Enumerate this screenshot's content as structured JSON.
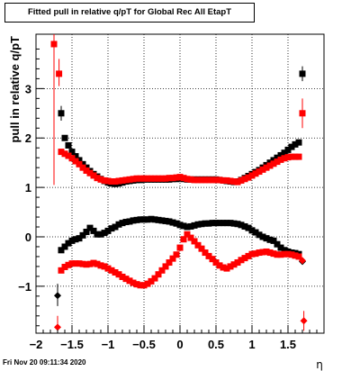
{
  "footer_date": "Fri Nov 20 09:11:34 2020",
  "chart_data": {
    "type": "scatter",
    "title": "Fitted pull in relative q/pT for Global Rec All EtapT",
    "xlabel": "η",
    "ylabel": "pull in relative q/pT",
    "xlim": [
      -2.0,
      2.0
    ],
    "ylim": [
      -1.95,
      4.1
    ],
    "xticks": [
      -2,
      -1.5,
      -1,
      -0.5,
      0,
      0.5,
      1,
      1.5
    ],
    "xtick_labels": [
      "−2",
      "−1.5",
      "−1",
      "−0.5",
      "0",
      "0.5",
      "1",
      "1.5"
    ],
    "yticks": [
      -1,
      0,
      1,
      2,
      3
    ],
    "ytick_labels": [
      "−1",
      "0",
      "1",
      "2",
      "3"
    ],
    "grid": true,
    "legend": "none",
    "colors": {
      "black": "#000000",
      "red": "#ff0000"
    },
    "series": [
      {
        "color": "#000000",
        "marker": "square",
        "points": [
          [
            -1.65,
            2.5
          ],
          [
            -1.6,
            2.0
          ],
          [
            -1.55,
            1.85
          ],
          [
            -1.5,
            1.72
          ],
          [
            -1.45,
            1.63
          ],
          [
            -1.4,
            1.55
          ],
          [
            -1.35,
            1.47
          ],
          [
            -1.3,
            1.4
          ],
          [
            -1.25,
            1.33
          ],
          [
            -1.2,
            1.27
          ],
          [
            -1.15,
            1.22
          ],
          [
            -1.1,
            1.17
          ],
          [
            -1.05,
            1.13
          ],
          [
            -1.0,
            1.1
          ],
          [
            -0.95,
            1.08
          ],
          [
            -0.9,
            1.07
          ],
          [
            -0.85,
            1.08
          ],
          [
            -0.8,
            1.1
          ],
          [
            -0.75,
            1.12
          ],
          [
            -0.7,
            1.13
          ],
          [
            -0.65,
            1.14
          ],
          [
            -0.6,
            1.15
          ],
          [
            -0.55,
            1.15
          ],
          [
            -0.5,
            1.16
          ],
          [
            -0.45,
            1.16
          ],
          [
            -0.4,
            1.16
          ],
          [
            -0.35,
            1.16
          ],
          [
            -0.3,
            1.16
          ],
          [
            -0.25,
            1.16
          ],
          [
            -0.2,
            1.16
          ],
          [
            -0.15,
            1.16
          ],
          [
            -0.1,
            1.17
          ],
          [
            -0.05,
            1.17
          ],
          [
            0.0,
            1.18
          ],
          [
            0.05,
            1.17
          ],
          [
            0.1,
            1.16
          ],
          [
            0.15,
            1.16
          ],
          [
            0.2,
            1.16
          ],
          [
            0.25,
            1.16
          ],
          [
            0.3,
            1.16
          ],
          [
            0.35,
            1.16
          ],
          [
            0.4,
            1.16
          ],
          [
            0.45,
            1.16
          ],
          [
            0.5,
            1.16
          ],
          [
            0.55,
            1.15
          ],
          [
            0.6,
            1.14
          ],
          [
            0.65,
            1.13
          ],
          [
            0.7,
            1.12
          ],
          [
            0.75,
            1.11
          ],
          [
            0.8,
            1.12
          ],
          [
            0.85,
            1.15
          ],
          [
            0.9,
            1.19
          ],
          [
            0.95,
            1.23
          ],
          [
            1.0,
            1.27
          ],
          [
            1.05,
            1.31
          ],
          [
            1.1,
            1.35
          ],
          [
            1.15,
            1.4
          ],
          [
            1.2,
            1.45
          ],
          [
            1.25,
            1.5
          ],
          [
            1.3,
            1.55
          ],
          [
            1.35,
            1.6
          ],
          [
            1.4,
            1.65
          ],
          [
            1.45,
            1.7
          ],
          [
            1.5,
            1.76
          ],
          [
            1.55,
            1.82
          ],
          [
            1.6,
            1.87
          ],
          [
            1.65,
            1.91
          ],
          [
            1.7,
            3.3
          ],
          [
            -1.65,
            -0.27
          ],
          [
            -1.6,
            -0.2
          ],
          [
            -1.55,
            -0.13
          ],
          [
            -1.5,
            -0.08
          ],
          [
            -1.45,
            -0.05
          ],
          [
            -1.4,
            -0.03
          ],
          [
            -1.35,
            0.03
          ],
          [
            -1.3,
            0.1
          ],
          [
            -1.25,
            0.18
          ],
          [
            -1.2,
            0.12
          ],
          [
            -1.15,
            0.05
          ],
          [
            -1.1,
            0.05
          ],
          [
            -1.05,
            0.08
          ],
          [
            -1.0,
            0.12
          ],
          [
            -0.95,
            0.17
          ],
          [
            -0.9,
            0.2
          ],
          [
            -0.85,
            0.25
          ],
          [
            -0.8,
            0.28
          ],
          [
            -0.75,
            0.3
          ],
          [
            -0.7,
            0.31
          ],
          [
            -0.65,
            0.33
          ],
          [
            -0.6,
            0.34
          ],
          [
            -0.55,
            0.35
          ],
          [
            -0.5,
            0.35
          ],
          [
            -0.45,
            0.35
          ],
          [
            -0.4,
            0.36
          ],
          [
            -0.35,
            0.35
          ],
          [
            -0.3,
            0.34
          ],
          [
            -0.25,
            0.33
          ],
          [
            -0.2,
            0.32
          ],
          [
            -0.15,
            0.31
          ],
          [
            -0.1,
            0.29
          ],
          [
            -0.05,
            0.27
          ],
          [
            0.0,
            0.24
          ],
          [
            0.05,
            0.22
          ],
          [
            0.1,
            0.2
          ],
          [
            0.15,
            0.21
          ],
          [
            0.2,
            0.23
          ],
          [
            0.25,
            0.25
          ],
          [
            0.3,
            0.26
          ],
          [
            0.35,
            0.27
          ],
          [
            0.4,
            0.27
          ],
          [
            0.45,
            0.28
          ],
          [
            0.5,
            0.28
          ],
          [
            0.55,
            0.28
          ],
          [
            0.6,
            0.28
          ],
          [
            0.65,
            0.28
          ],
          [
            0.7,
            0.28
          ],
          [
            0.75,
            0.27
          ],
          [
            0.8,
            0.26
          ],
          [
            0.85,
            0.24
          ],
          [
            0.9,
            0.21
          ],
          [
            0.95,
            0.18
          ],
          [
            1.0,
            0.13
          ],
          [
            1.05,
            0.09
          ],
          [
            1.1,
            0.04
          ],
          [
            1.15,
            0.0
          ],
          [
            1.2,
            -0.03
          ],
          [
            1.25,
            -0.06
          ],
          [
            1.3,
            -0.08
          ],
          [
            1.35,
            -0.15
          ],
          [
            1.4,
            -0.22
          ],
          [
            1.45,
            -0.27
          ],
          [
            1.5,
            -0.3
          ],
          [
            1.55,
            -0.32
          ],
          [
            1.6,
            -0.33
          ],
          [
            1.65,
            -0.35
          ],
          [
            1.7,
            -0.5
          ],
          [
            -1.7,
            -1.19
          ]
        ]
      },
      {
        "color": "#ff0000",
        "marker": "square",
        "points": [
          [
            -1.75,
            3.9
          ],
          [
            -1.68,
            3.3
          ],
          [
            -1.65,
            1.72
          ],
          [
            -1.6,
            1.68
          ],
          [
            -1.55,
            1.64
          ],
          [
            -1.5,
            1.59
          ],
          [
            -1.45,
            1.53
          ],
          [
            -1.4,
            1.47
          ],
          [
            -1.35,
            1.4
          ],
          [
            -1.3,
            1.34
          ],
          [
            -1.25,
            1.29
          ],
          [
            -1.2,
            1.24
          ],
          [
            -1.15,
            1.19
          ],
          [
            -1.1,
            1.16
          ],
          [
            -1.05,
            1.14
          ],
          [
            -1.0,
            1.13
          ],
          [
            -0.95,
            1.12
          ],
          [
            -0.9,
            1.12
          ],
          [
            -0.85,
            1.13
          ],
          [
            -0.8,
            1.14
          ],
          [
            -0.75,
            1.15
          ],
          [
            -0.7,
            1.16
          ],
          [
            -0.65,
            1.17
          ],
          [
            -0.6,
            1.18
          ],
          [
            -0.55,
            1.18
          ],
          [
            -0.5,
            1.18
          ],
          [
            -0.45,
            1.18
          ],
          [
            -0.4,
            1.18
          ],
          [
            -0.35,
            1.18
          ],
          [
            -0.3,
            1.18
          ],
          [
            -0.25,
            1.18
          ],
          [
            -0.2,
            1.18
          ],
          [
            -0.15,
            1.19
          ],
          [
            -0.1,
            1.19
          ],
          [
            -0.05,
            1.2
          ],
          [
            0.0,
            1.21
          ],
          [
            0.05,
            1.19
          ],
          [
            0.1,
            1.17
          ],
          [
            0.15,
            1.16
          ],
          [
            0.2,
            1.15
          ],
          [
            0.25,
            1.15
          ],
          [
            0.3,
            1.15
          ],
          [
            0.35,
            1.15
          ],
          [
            0.4,
            1.15
          ],
          [
            0.45,
            1.15
          ],
          [
            0.5,
            1.15
          ],
          [
            0.55,
            1.15
          ],
          [
            0.6,
            1.14
          ],
          [
            0.65,
            1.14
          ],
          [
            0.7,
            1.13
          ],
          [
            0.75,
            1.12
          ],
          [
            0.8,
            1.11
          ],
          [
            0.85,
            1.14
          ],
          [
            0.9,
            1.17
          ],
          [
            0.95,
            1.2
          ],
          [
            1.0,
            1.24
          ],
          [
            1.05,
            1.28
          ],
          [
            1.1,
            1.32
          ],
          [
            1.15,
            1.36
          ],
          [
            1.2,
            1.4
          ],
          [
            1.25,
            1.44
          ],
          [
            1.3,
            1.48
          ],
          [
            1.35,
            1.52
          ],
          [
            1.4,
            1.56
          ],
          [
            1.45,
            1.59
          ],
          [
            1.5,
            1.61
          ],
          [
            1.55,
            1.62
          ],
          [
            1.6,
            1.62
          ],
          [
            1.65,
            1.62
          ],
          [
            1.7,
            2.5
          ],
          [
            -1.65,
            -0.68
          ],
          [
            -1.6,
            -0.61
          ],
          [
            -1.55,
            -0.57
          ],
          [
            -1.5,
            -0.54
          ],
          [
            -1.45,
            -0.54
          ],
          [
            -1.4,
            -0.54
          ],
          [
            -1.35,
            -0.55
          ],
          [
            -1.3,
            -0.56
          ],
          [
            -1.25,
            -0.55
          ],
          [
            -1.2,
            -0.53
          ],
          [
            -1.15,
            -0.55
          ],
          [
            -1.1,
            -0.58
          ],
          [
            -1.05,
            -0.6
          ],
          [
            -1.0,
            -0.64
          ],
          [
            -0.95,
            -0.68
          ],
          [
            -0.9,
            -0.72
          ],
          [
            -0.85,
            -0.76
          ],
          [
            -0.8,
            -0.81
          ],
          [
            -0.75,
            -0.85
          ],
          [
            -0.7,
            -0.89
          ],
          [
            -0.65,
            -0.93
          ],
          [
            -0.6,
            -0.96
          ],
          [
            -0.55,
            -0.98
          ],
          [
            -0.5,
            -0.98
          ],
          [
            -0.45,
            -0.95
          ],
          [
            -0.4,
            -0.9
          ],
          [
            -0.35,
            -0.84
          ],
          [
            -0.3,
            -0.76
          ],
          [
            -0.25,
            -0.68
          ],
          [
            -0.2,
            -0.6
          ],
          [
            -0.15,
            -0.52
          ],
          [
            -0.1,
            -0.44
          ],
          [
            -0.05,
            -0.36
          ],
          [
            0.0,
            -0.22
          ],
          [
            0.05,
            -0.05
          ],
          [
            0.1,
            0.05
          ],
          [
            0.15,
            -0.02
          ],
          [
            0.2,
            -0.09
          ],
          [
            0.25,
            -0.17
          ],
          [
            0.3,
            -0.24
          ],
          [
            0.35,
            -0.32
          ],
          [
            0.4,
            -0.39
          ],
          [
            0.45,
            -0.45
          ],
          [
            0.5,
            -0.52
          ],
          [
            0.55,
            -0.58
          ],
          [
            0.6,
            -0.62
          ],
          [
            0.65,
            -0.64
          ],
          [
            0.7,
            -0.6
          ],
          [
            0.75,
            -0.56
          ],
          [
            0.8,
            -0.52
          ],
          [
            0.85,
            -0.47
          ],
          [
            0.9,
            -0.43
          ],
          [
            0.95,
            -0.39
          ],
          [
            1.0,
            -0.35
          ],
          [
            1.05,
            -0.34
          ],
          [
            1.1,
            -0.32
          ],
          [
            1.15,
            -0.31
          ],
          [
            1.2,
            -0.3
          ],
          [
            1.25,
            -0.32
          ],
          [
            1.3,
            -0.34
          ],
          [
            1.35,
            -0.36
          ],
          [
            1.4,
            -0.36
          ],
          [
            1.45,
            -0.35
          ],
          [
            1.5,
            -0.35
          ],
          [
            1.55,
            -0.36
          ],
          [
            1.6,
            -0.38
          ],
          [
            1.65,
            -0.4
          ],
          [
            1.7,
            -0.48
          ],
          [
            -1.7,
            -1.83
          ],
          [
            1.72,
            -1.7
          ]
        ]
      }
    ],
    "error_bars": [
      {
        "series": "red",
        "x": -1.75,
        "y": 3.9,
        "ylow": 1.05,
        "yhigh": 4.1
      },
      {
        "series": "red",
        "x": -1.68,
        "y": 3.3,
        "ylow": 3.05,
        "yhigh": 3.6
      },
      {
        "series": "black",
        "x": -1.65,
        "y": 2.5,
        "ylow": 2.35,
        "yhigh": 2.65
      },
      {
        "series": "black",
        "x": 1.7,
        "y": 3.3,
        "ylow": 3.15,
        "yhigh": 3.45
      },
      {
        "series": "red",
        "x": 1.7,
        "y": 2.5,
        "ylow": 2.2,
        "yhigh": 2.8
      },
      {
        "series": "black",
        "x": -1.7,
        "y": -1.19,
        "ylow": -1.4,
        "yhigh": -0.95
      },
      {
        "series": "red",
        "x": -1.7,
        "y": -1.83,
        "ylow": -1.95,
        "yhigh": -1.6
      },
      {
        "series": "red",
        "x": 1.72,
        "y": -1.7,
        "ylow": -1.9,
        "yhigh": -1.5
      }
    ]
  }
}
